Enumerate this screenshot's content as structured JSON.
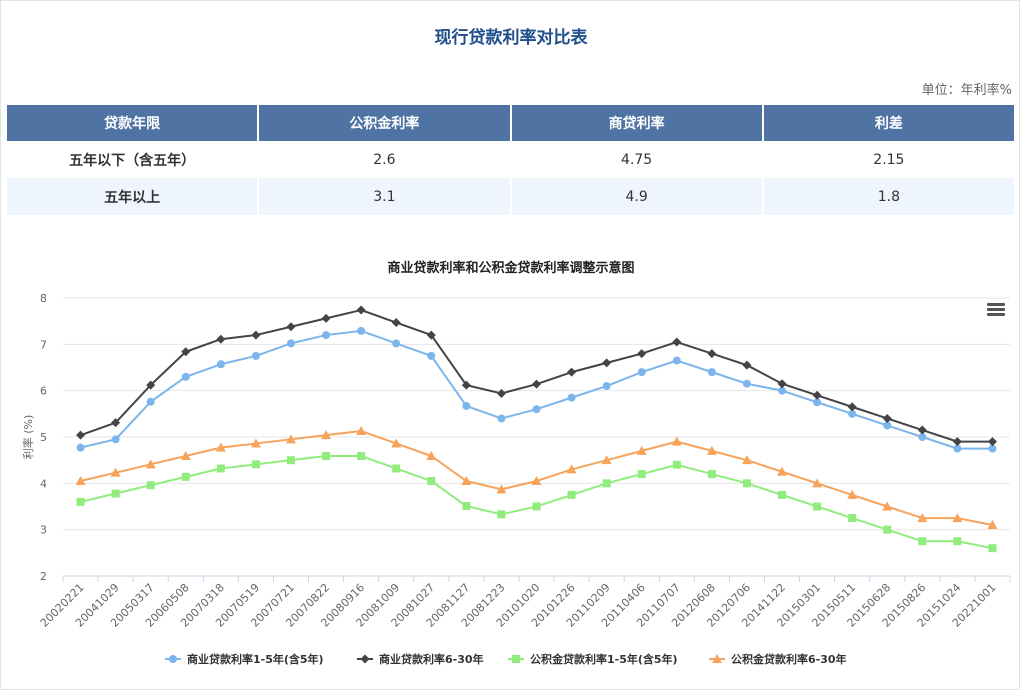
{
  "header": {
    "title": "现行贷款利率对比表",
    "unit": "单位：年利率%"
  },
  "table": {
    "headers": [
      "贷款年限",
      "公积金利率",
      "商贷利率",
      "利差"
    ],
    "rows": [
      {
        "term": "五年以下（含五年）",
        "gjj": "2.6",
        "sd": "4.75",
        "diff": "2.15"
      },
      {
        "term": "五年以上",
        "gjj": "3.1",
        "sd": "4.9",
        "diff": "1.8"
      }
    ]
  },
  "menu_icon": "hamburger-menu-icon",
  "chart_data": {
    "type": "line",
    "title": "商业贷款利率和公积金贷款利率调整示意图",
    "ylabel": "利率 (%)",
    "xlabel": "",
    "ylim": [
      2,
      8
    ],
    "yticks": [
      2,
      3,
      4,
      5,
      6,
      7,
      8
    ],
    "grid": true,
    "legend": "bottom",
    "x": [
      "20020221",
      "20041029",
      "20050317",
      "20060508",
      "20070318",
      "20070519",
      "20070721",
      "20070822",
      "20080916",
      "20081009",
      "20081027",
      "20081127",
      "20081223",
      "20101020",
      "20101226",
      "20110209",
      "20110406",
      "20110707",
      "20120608",
      "20120706",
      "20141122",
      "20150301",
      "20150511",
      "20150628",
      "20150826",
      "20151024",
      "20221001"
    ],
    "series": [
      {
        "name": "商业贷款利率1-5年(含5年)",
        "color": "#7cb5ec",
        "marker": "circle",
        "values": [
          4.77,
          4.95,
          5.76,
          6.3,
          6.57,
          6.75,
          7.02,
          7.2,
          7.29,
          7.02,
          6.75,
          5.67,
          5.4,
          5.6,
          5.85,
          6.1,
          6.4,
          6.65,
          6.4,
          6.15,
          6.0,
          5.75,
          5.5,
          5.25,
          5.0,
          4.75,
          4.75
        ]
      },
      {
        "name": "商业贷款利率6-30年",
        "color": "#434348",
        "marker": "diamond",
        "values": [
          5.04,
          5.31,
          6.12,
          6.84,
          7.11,
          7.2,
          7.38,
          7.56,
          7.74,
          7.47,
          7.2,
          6.12,
          5.94,
          6.14,
          6.4,
          6.6,
          6.8,
          7.05,
          6.8,
          6.55,
          6.15,
          5.9,
          5.65,
          5.4,
          5.15,
          4.9,
          4.9
        ]
      },
      {
        "name": "公积金贷款利率1-5年(含5年)",
        "color": "#90ed7d",
        "marker": "square",
        "values": [
          3.6,
          3.78,
          3.96,
          4.14,
          4.32,
          4.41,
          4.5,
          4.59,
          4.59,
          4.32,
          4.05,
          3.51,
          3.33,
          3.5,
          3.75,
          4.0,
          4.2,
          4.4,
          4.2,
          4.0,
          3.75,
          3.5,
          3.25,
          3.0,
          2.75,
          2.75,
          2.6
        ]
      },
      {
        "name": "公积金贷款利率6-30年",
        "color": "#f7a35c",
        "marker": "triangle",
        "values": [
          4.05,
          4.23,
          4.41,
          4.59,
          4.77,
          4.86,
          4.95,
          5.04,
          5.13,
          4.86,
          4.59,
          4.05,
          3.87,
          4.05,
          4.3,
          4.5,
          4.7,
          4.9,
          4.7,
          4.5,
          4.25,
          4.0,
          3.75,
          3.5,
          3.25,
          3.25,
          3.1
        ]
      }
    ]
  }
}
